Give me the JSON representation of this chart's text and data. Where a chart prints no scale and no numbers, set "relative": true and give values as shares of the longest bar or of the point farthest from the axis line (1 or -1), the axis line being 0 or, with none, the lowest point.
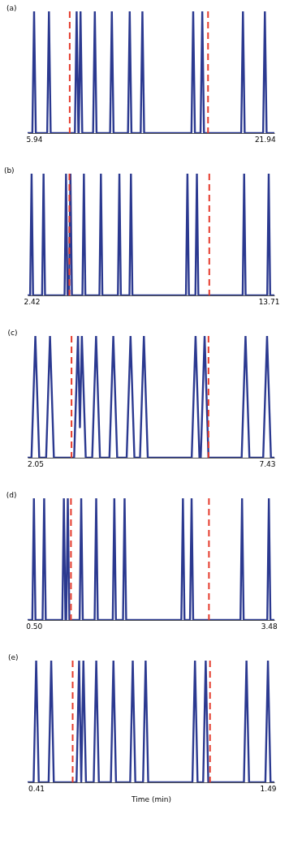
{
  "chart_data": [
    {
      "type": "line",
      "title": "(a)",
      "relative": true,
      "xlim": [
        5.49,
        22.6
      ],
      "xticks": [
        5.94,
        21.94
      ],
      "series": [
        {
          "color": "#2b3990",
          "x": [
            5.49,
            5.82,
            5.94,
            6.06,
            6.85,
            6.97,
            7.09,
            8.77,
            8.89,
            9.01,
            9.04,
            9.16,
            9.28,
            10.03,
            10.15,
            10.27,
            11.21,
            11.33,
            11.45,
            12.45,
            12.57,
            12.69,
            13.33,
            13.45,
            13.57,
            16.85,
            16.97,
            17.09,
            17.48,
            17.6,
            17.72,
            20.3,
            20.42,
            20.54,
            21.82,
            21.94,
            22.06,
            22.6
          ],
          "values": [
            0,
            0,
            1,
            0,
            0,
            1,
            0,
            0,
            1,
            0,
            0,
            1,
            0,
            0,
            1,
            0,
            0,
            1,
            0,
            0,
            1,
            0,
            0,
            1,
            0,
            0,
            1,
            0,
            0,
            1,
            0,
            0,
            1,
            0,
            0,
            1,
            0,
            0
          ]
        }
      ],
      "ref_lines": [
        {
          "axis": "x",
          "value": 8.41,
          "color": "#e53b2c",
          "line_style": "dashed"
        },
        {
          "axis": "x",
          "value": 18.0,
          "color": "#e53b2c",
          "line_style": "dashed"
        }
      ]
    },
    {
      "type": "line",
      "title": "(b)",
      "relative": true,
      "xlim": [
        2.23,
        13.98
      ],
      "xticks": [
        2.42,
        13.71
      ],
      "series": [
        {
          "color": "#2b3990",
          "x": [
            2.23,
            2.35,
            2.42,
            2.49,
            2.92,
            2.99,
            3.06,
            3.99,
            4.06,
            4.13,
            4.2,
            4.27,
            4.34,
            4.84,
            4.91,
            4.98,
            5.65,
            5.72,
            5.79,
            6.53,
            6.6,
            6.67,
            7.08,
            7.15,
            7.22,
            9.77,
            9.84,
            9.91,
            10.22,
            10.29,
            10.36,
            12.47,
            12.54,
            12.61,
            13.64,
            13.71,
            13.78,
            13.98
          ],
          "values": [
            0,
            0,
            1,
            0,
            0,
            1,
            0,
            0,
            1,
            0,
            0,
            1,
            0,
            0,
            1,
            0,
            0,
            1,
            0,
            0,
            1,
            0,
            0,
            1,
            0,
            0,
            1,
            0,
            0,
            1,
            0,
            0,
            1,
            0,
            0,
            1,
            0,
            0
          ]
        }
      ],
      "ref_lines": [
        {
          "axis": "x",
          "value": 4.22,
          "color": "#e53b2c",
          "line_style": "dashed"
        },
        {
          "axis": "x",
          "value": 10.88,
          "color": "#e53b2c",
          "line_style": "dashed"
        }
      ]
    },
    {
      "type": "line",
      "title": "(c)",
      "relative": true,
      "xlim": [
        1.87,
        7.6
      ],
      "xticks": [
        2.05,
        7.43
      ],
      "series": [
        {
          "color": "#2b3990",
          "x": [
            1.87,
            1.96,
            2.05,
            2.14,
            2.3,
            2.39,
            2.48,
            2.95,
            3.04,
            3.085,
            3.13,
            3.22,
            3.37,
            3.46,
            3.55,
            3.77,
            3.86,
            3.95,
            4.17,
            4.26,
            4.35,
            4.48,
            4.57,
            4.66,
            5.68,
            5.77,
            5.86,
            5.89,
            5.98,
            6.07,
            6.84,
            6.93,
            7.02,
            7.34,
            7.43,
            7.52,
            7.6
          ],
          "values": [
            0,
            0,
            1,
            0,
            0,
            1,
            0,
            0,
            1,
            0.25,
            1,
            0,
            0,
            1,
            0,
            0,
            1,
            0,
            0,
            1,
            0,
            0,
            1,
            0,
            0,
            1,
            0,
            0,
            1,
            0,
            0,
            1,
            0,
            0,
            1,
            0,
            0
          ]
        }
      ],
      "ref_lines": [
        {
          "axis": "x",
          "value": 2.89,
          "color": "#e53b2c",
          "line_style": "dashed"
        },
        {
          "axis": "x",
          "value": 6.07,
          "color": "#e53b2c",
          "line_style": "dashed"
        }
      ]
    },
    {
      "type": "line",
      "title": "(d)",
      "relative": true,
      "xlim": [
        0.42,
        3.55
      ],
      "xticks": [
        {
          "value": 0.5,
          "label": "0.50"
        },
        3.48
      ],
      "series": [
        {
          "color": "#2b3990",
          "x": [
            0.42,
            0.48,
            0.5,
            0.52,
            0.61,
            0.63,
            0.65,
            0.86,
            0.88,
            0.9,
            0.91,
            0.93,
            0.95,
            1.08,
            1.1,
            1.12,
            1.27,
            1.29,
            1.31,
            1.5,
            1.52,
            1.54,
            1.63,
            1.65,
            1.67,
            2.37,
            2.39,
            2.41,
            2.48,
            2.5,
            2.52,
            3.12,
            3.14,
            3.16,
            3.46,
            3.48,
            3.5,
            3.55
          ],
          "values": [
            0,
            0,
            1,
            0,
            0,
            1,
            0,
            0,
            1,
            0,
            0,
            1,
            0,
            0,
            1,
            0,
            0,
            1,
            0,
            0,
            1,
            0,
            0,
            1,
            0,
            0,
            1,
            0,
            0,
            1,
            0,
            0,
            1,
            0,
            0,
            1,
            0,
            0
          ]
        }
      ],
      "ref_lines": [
        {
          "axis": "x",
          "value": 0.97,
          "color": "#e53b2c",
          "line_style": "dashed"
        },
        {
          "axis": "x",
          "value": 2.72,
          "color": "#e53b2c",
          "line_style": "dashed"
        }
      ]
    },
    {
      "type": "line",
      "title": "(e)",
      "relative": true,
      "xlabel": "Time (min)",
      "xlim": [
        0.37,
        1.52
      ],
      "xticks": [
        0.41,
        1.49
      ],
      "series": [
        {
          "color": "#2b3990",
          "x": [
            0.37,
            0.398,
            0.41,
            0.422,
            0.468,
            0.48,
            0.492,
            0.598,
            0.61,
            0.62,
            0.63,
            0.642,
            0.678,
            0.69,
            0.702,
            0.758,
            0.77,
            0.782,
            0.848,
            0.86,
            0.872,
            0.908,
            0.92,
            0.932,
            1.138,
            1.15,
            1.162,
            1.188,
            1.2,
            1.212,
            1.378,
            1.39,
            1.402,
            1.478,
            1.49,
            1.502,
            1.52
          ],
          "values": [
            0,
            0,
            1,
            0,
            0,
            1,
            0,
            0,
            1,
            0,
            1,
            0,
            0,
            1,
            0,
            0,
            1,
            0,
            0,
            1,
            0,
            0,
            1,
            0,
            0,
            1,
            0,
            0,
            1,
            0,
            0,
            1,
            0,
            0,
            1,
            0,
            0
          ]
        }
      ],
      "ref_lines": [
        {
          "axis": "x",
          "value": 0.58,
          "color": "#e53b2c",
          "line_style": "dashed"
        },
        {
          "axis": "x",
          "value": 1.22,
          "color": "#e53b2c",
          "line_style": "dashed"
        }
      ]
    }
  ]
}
